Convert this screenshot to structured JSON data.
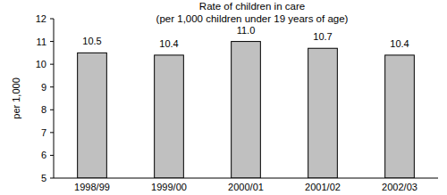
{
  "chart_data": {
    "type": "bar",
    "title": "Rate of children in care",
    "subtitle": "(per 1,000 children under 19 years of age)",
    "y_label": "per 1,000",
    "categories": [
      "1998/99",
      "1999/00",
      "2000/01",
      "2001/02",
      "2002/03"
    ],
    "values": [
      10.5,
      10.4,
      11.0,
      10.7,
      10.4
    ],
    "value_labels": [
      "10.5",
      "10.4",
      "11.0",
      "10.7",
      "10.4"
    ],
    "color": "#c0c0c0",
    "ylim": [
      5,
      12
    ],
    "yticks": [
      5,
      6,
      7,
      8,
      9,
      10,
      11,
      12
    ],
    "grid": false,
    "data_labels": true
  }
}
